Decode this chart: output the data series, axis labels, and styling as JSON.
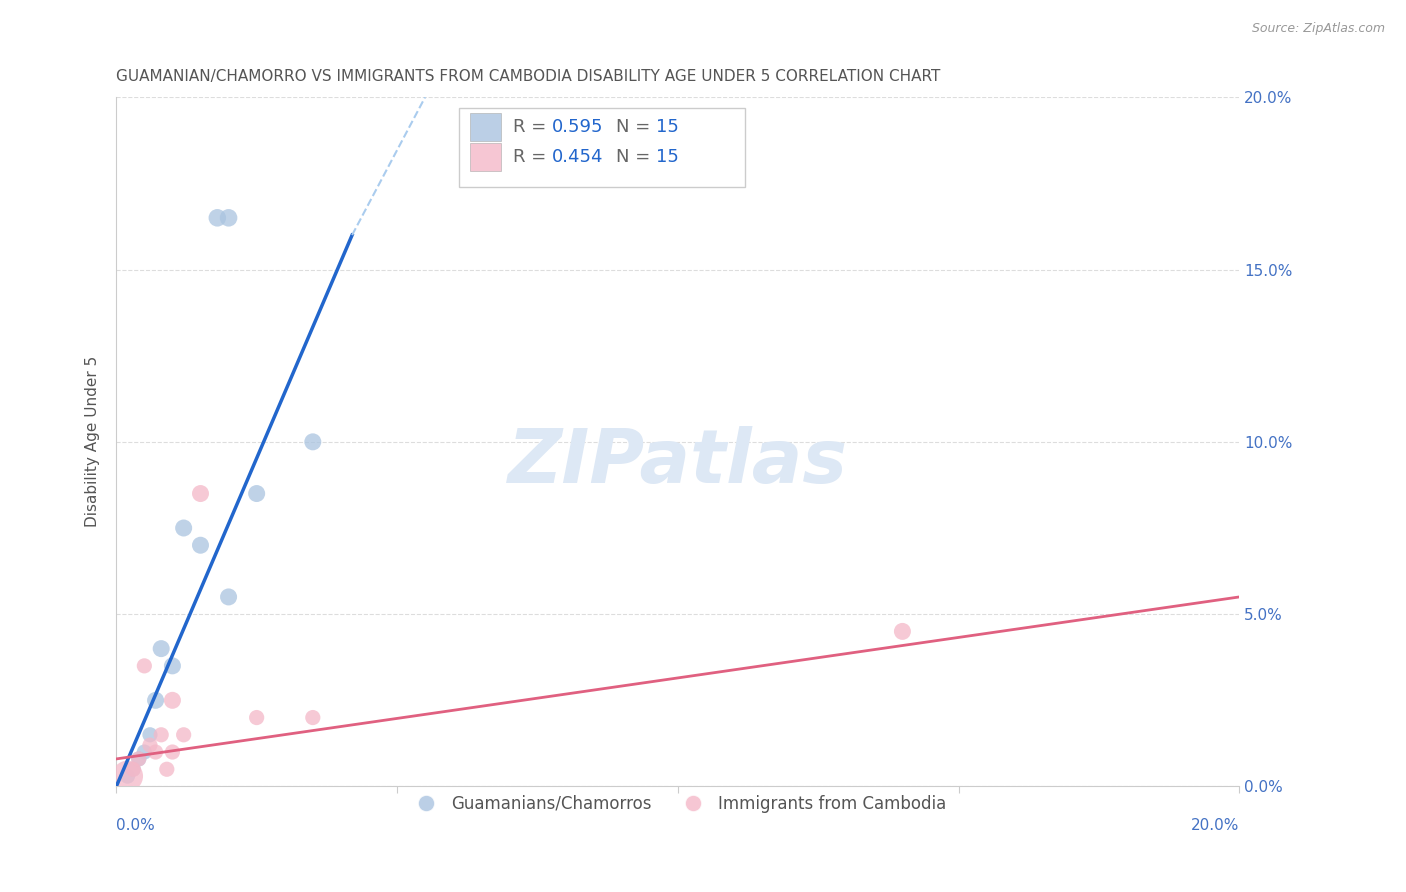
{
  "title": "GUAMANIAN/CHAMORRO VS IMMIGRANTS FROM CAMBODIA DISABILITY AGE UNDER 5 CORRELATION CHART",
  "source": "Source: ZipAtlas.com",
  "ylabel": "Disability Age Under 5",
  "xmin": 0.0,
  "xmax": 20.0,
  "ymin": 0.0,
  "ymax": 20.0,
  "legend_R_blue": "0.595",
  "legend_N_blue": "15",
  "legend_R_pink": "0.454",
  "legend_N_pink": "15",
  "blue_color": "#aac4e0",
  "blue_line_color": "#2266cc",
  "pink_color": "#f4b8c8",
  "pink_line_color": "#e06080",
  "trendline_dash_color": "#aaccee",
  "watermark_text": "ZIPatlas",
  "blue_scatter_x": [
    0.2,
    0.3,
    0.4,
    0.5,
    0.6,
    0.7,
    0.8,
    1.0,
    1.2,
    1.5,
    1.8,
    2.0,
    2.5,
    2.0,
    3.5
  ],
  "blue_scatter_y": [
    0.3,
    0.5,
    0.8,
    1.0,
    1.5,
    2.5,
    4.0,
    3.5,
    7.5,
    7.0,
    16.5,
    16.5,
    8.5,
    5.5,
    10.0
  ],
  "pink_scatter_x": [
    0.2,
    0.3,
    0.4,
    0.5,
    0.6,
    0.7,
    0.8,
    1.0,
    1.2,
    1.5,
    2.5,
    3.5,
    14.0,
    0.9,
    1.0
  ],
  "pink_scatter_y": [
    0.3,
    0.5,
    0.8,
    3.5,
    1.2,
    1.0,
    1.5,
    2.5,
    1.5,
    8.5,
    2.0,
    2.0,
    4.5,
    0.5,
    1.0
  ],
  "blue_bubble_sizes": [
    120,
    120,
    120,
    120,
    120,
    150,
    150,
    150,
    150,
    150,
    160,
    160,
    150,
    150,
    150
  ],
  "pink_bubble_sizes": [
    500,
    120,
    120,
    120,
    120,
    120,
    120,
    150,
    120,
    150,
    120,
    120,
    150,
    120,
    120
  ],
  "blue_line_x0": 0.0,
  "blue_line_y0": 0.0,
  "blue_line_x1": 4.2,
  "blue_line_y1": 16.0,
  "blue_dash_x0": 4.2,
  "blue_dash_y0": 16.0,
  "blue_dash_x1": 5.5,
  "blue_dash_y1": 20.0,
  "pink_line_x0": 0.0,
  "pink_line_y0": 0.8,
  "pink_line_x1": 20.0,
  "pink_line_y1": 5.5,
  "grid_color": "#dddddd",
  "bg_color": "#ffffff",
  "title_color": "#555555",
  "axis_label_color": "#555555",
  "tick_label_color_blue": "#4472c4",
  "watermark_color": "#dde8f5"
}
